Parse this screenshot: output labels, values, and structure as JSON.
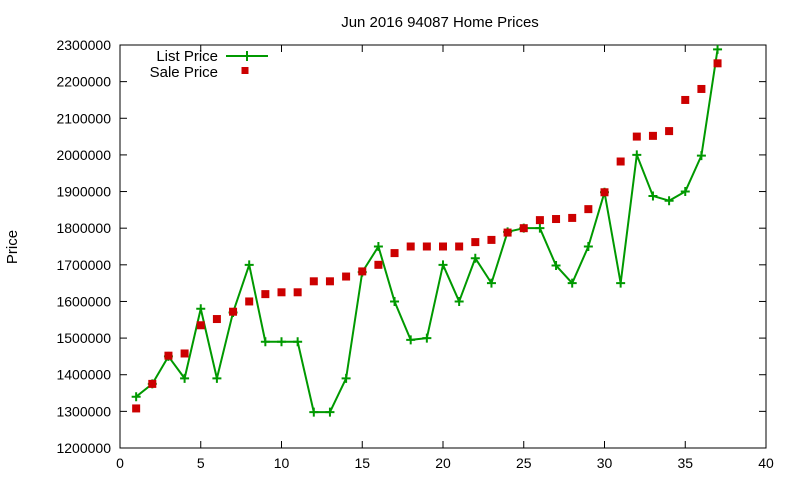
{
  "chart_data": {
    "type": "line",
    "title": "Jun 2016 94087 Home Prices",
    "xlabel": "",
    "ylabel": "Price",
    "xlim": [
      0,
      40
    ],
    "ylim": [
      1200000,
      2300000
    ],
    "x_ticks": [
      0,
      5,
      10,
      15,
      20,
      25,
      30,
      35,
      40
    ],
    "y_ticks": [
      1200000,
      1300000,
      1400000,
      1500000,
      1600000,
      1700000,
      1800000,
      1900000,
      2000000,
      2100000,
      2200000,
      2300000
    ],
    "grid": false,
    "legend_position": "top-left",
    "series": [
      {
        "name": "List Price",
        "style": "line-with-plus-markers",
        "color": "#009900",
        "x": [
          1,
          2,
          3,
          4,
          5,
          6,
          7,
          8,
          9,
          10,
          11,
          12,
          13,
          14,
          15,
          16,
          17,
          18,
          19,
          20,
          21,
          22,
          23,
          24,
          25,
          26,
          27,
          28,
          29,
          30,
          31,
          32,
          33,
          34,
          35,
          36,
          37
        ],
        "y": [
          1340000,
          1375000,
          1450000,
          1390000,
          1580000,
          1390000,
          1570000,
          1700000,
          1490000,
          1490000,
          1490000,
          1298000,
          1298000,
          1390000,
          1680000,
          1750000,
          1600000,
          1495000,
          1500000,
          1700000,
          1600000,
          1718000,
          1650000,
          1790000,
          1800000,
          1800000,
          1698000,
          1650000,
          1750000,
          1898000,
          1650000,
          2000000,
          1888000,
          1875000,
          1900000,
          1998000,
          2288000
        ]
      },
      {
        "name": "Sale Price",
        "style": "square-markers",
        "color": "#cc0000",
        "x": [
          1,
          2,
          3,
          4,
          5,
          6,
          7,
          8,
          9,
          10,
          11,
          12,
          13,
          14,
          15,
          16,
          17,
          18,
          19,
          20,
          21,
          22,
          23,
          24,
          25,
          26,
          27,
          28,
          29,
          30,
          31,
          32,
          33,
          34,
          35,
          36,
          37
        ],
        "y": [
          1308000,
          1375000,
          1452000,
          1458000,
          1535000,
          1552000,
          1572000,
          1600000,
          1620000,
          1625000,
          1625000,
          1655000,
          1655000,
          1668000,
          1682000,
          1700000,
          1732000,
          1750000,
          1750000,
          1750000,
          1750000,
          1762000,
          1768000,
          1788000,
          1800000,
          1822000,
          1825000,
          1828000,
          1852000,
          1898000,
          1982000,
          2050000,
          2052000,
          2065000,
          2150000,
          2180000,
          2250000
        ]
      }
    ]
  }
}
